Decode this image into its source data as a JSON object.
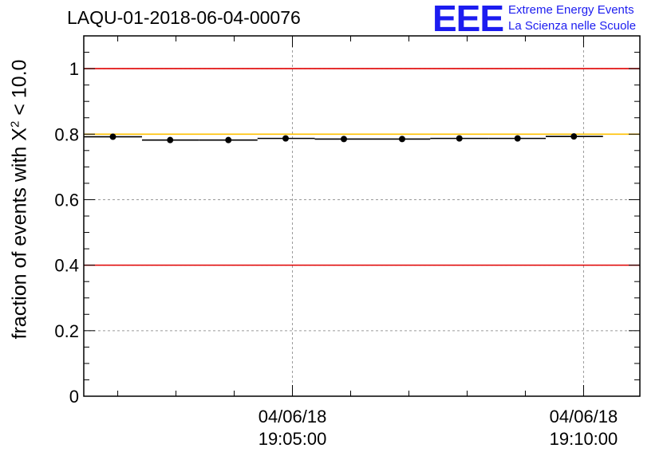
{
  "header": {
    "title": "LAQU-01-2018-06-04-00076",
    "logo_letters": "EEE",
    "logo_line1": "Extreme Energy Events",
    "logo_line2": "La Scienza nelle Scuole"
  },
  "colors": {
    "logo": "#1c1cf0",
    "threshold_red": "#e00000",
    "threshold_yellow": "#ffc000",
    "grid": "#9a9a9a",
    "data": "#000000"
  },
  "axis": {
    "ylabel_prefix": "fraction of events with ",
    "ylabel_symbol": "X",
    "ylabel_sup": "2",
    "ylabel_suffix": " < 10.0"
  },
  "chart_data": {
    "type": "scatter",
    "x_unit": "seconds from 19:00:00 on 04/06/18",
    "ylim": [
      0,
      1.1
    ],
    "yticks": [
      0,
      0.2,
      0.4,
      0.6,
      0.8,
      1
    ],
    "ytick_labels": [
      "0",
      "0.2",
      "0.4",
      "0.6",
      "0.8",
      "1"
    ],
    "xlim_time": [
      "19:01:25",
      "19:10:58"
    ],
    "xticks": [
      {
        "date": "04/06/18",
        "time": "19:05:00"
      },
      {
        "date": "04/06/18",
        "time": "19:10:00"
      }
    ],
    "reference_lines": [
      {
        "y": 1.0,
        "color": "red"
      },
      {
        "y": 0.8,
        "color": "yellow"
      },
      {
        "y": 0.4,
        "color": "red"
      }
    ],
    "grid": true,
    "points": [
      {
        "x": "19:01:55",
        "y": 0.792
      },
      {
        "x": "19:02:54",
        "y": 0.782
      },
      {
        "x": "19:03:54",
        "y": 0.782
      },
      {
        "x": "19:04:53",
        "y": 0.787
      },
      {
        "x": "19:05:53",
        "y": 0.785
      },
      {
        "x": "19:06:53",
        "y": 0.785
      },
      {
        "x": "19:07:52",
        "y": 0.787
      },
      {
        "x": "19:08:52",
        "y": 0.787
      },
      {
        "x": "19:09:50",
        "y": 0.793
      }
    ],
    "bin_edges": [
      "19:01:25",
      "19:02:25",
      "19:03:24",
      "19:04:24",
      "19:05:23",
      "19:06:23",
      "19:07:22",
      "19:08:22",
      "19:09:21",
      "19:10:20"
    ]
  }
}
